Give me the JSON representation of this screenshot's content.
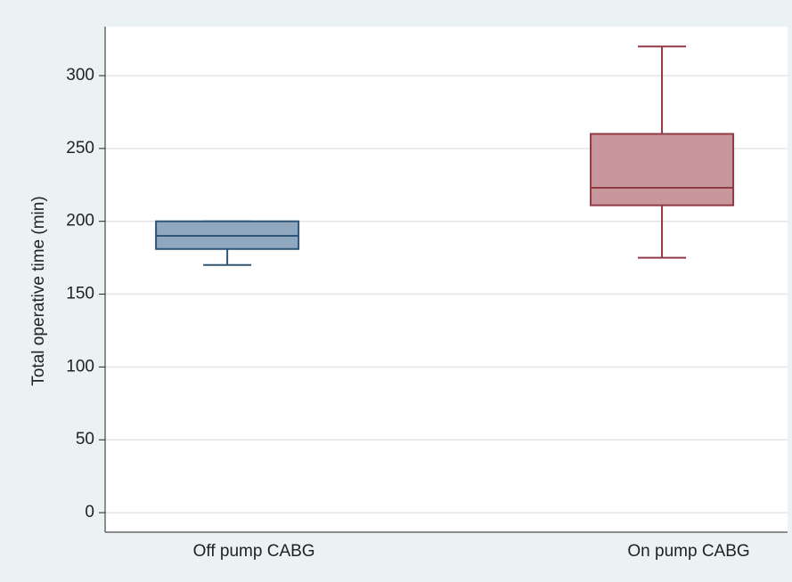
{
  "chart_data": {
    "type": "box",
    "y_label": "Total operative time (min)",
    "categories": [
      "Off pump CABG",
      "On pump CABG"
    ],
    "boxes": [
      {
        "min": 170,
        "q1": 181,
        "median": 190,
        "q3": 200,
        "max": 200,
        "color": "#8fa7bf",
        "edge_color": "#2f5577"
      },
      {
        "min": 175,
        "q1": 211,
        "median": 223,
        "q3": 260,
        "max": 320,
        "color": "#c8979b",
        "edge_color": "#8f3a44"
      }
    ],
    "ylim": [
      -13.4,
      333.6
    ],
    "yticks": [
      0,
      50,
      100,
      150,
      200,
      250,
      300
    ],
    "grid": true
  }
}
